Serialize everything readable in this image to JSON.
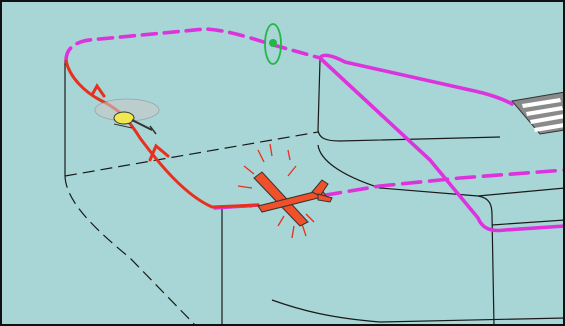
{
  "diagram": {
    "background_color": "#a8d5d5",
    "frame_color": "#111111",
    "airspace_line_color": "#1a1a1a",
    "pattern_color": "#dd33dd",
    "deviation_color": "#e8301e",
    "airplane_color": "#f0502a",
    "helicopter_color": "#f0e850",
    "fix_marker_color": "#22b845",
    "runway_color": "#8a8a8a",
    "elements": [
      "airspace-boundary",
      "traffic-pattern",
      "off-course-track",
      "airplane",
      "helicopter",
      "reporting-point",
      "runway"
    ]
  }
}
